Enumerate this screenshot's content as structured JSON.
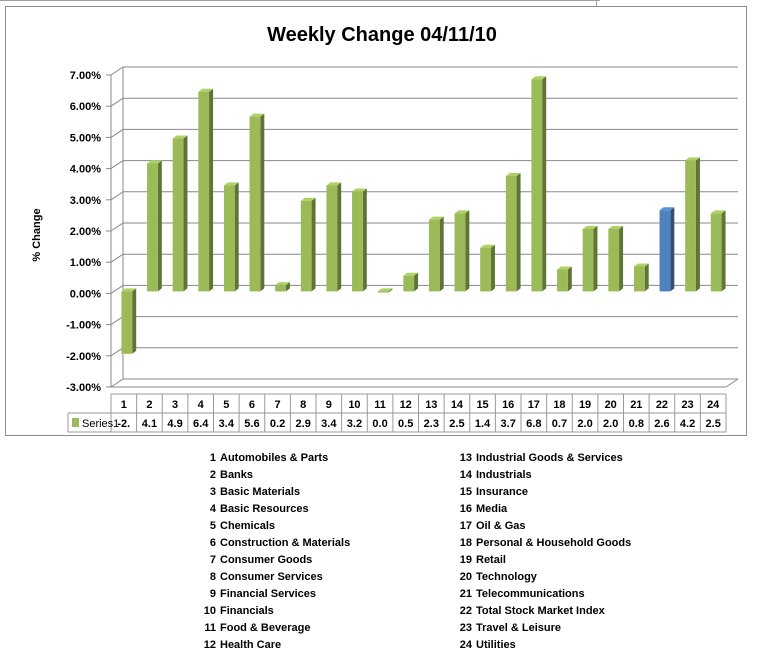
{
  "chart_data": {
    "type": "bar",
    "title": "Weekly Change 04/11/10",
    "ylabel": "% Change",
    "xlabel": "",
    "ylim": [
      -3,
      7
    ],
    "y_ticks": [
      "7.00%",
      "6.00%",
      "5.00%",
      "4.00%",
      "3.00%",
      "2.00%",
      "1.00%",
      "0.00%",
      "-1.00%",
      "-2.00%",
      "-3.00%"
    ],
    "grid": true,
    "categories": [
      "1",
      "2",
      "3",
      "4",
      "5",
      "6",
      "7",
      "8",
      "9",
      "10",
      "11",
      "12",
      "13",
      "14",
      "15",
      "16",
      "17",
      "18",
      "19",
      "20",
      "21",
      "22",
      "23",
      "24"
    ],
    "series": [
      {
        "name": "Series1",
        "values": [
          -2.0,
          4.1,
          4.9,
          6.4,
          3.4,
          5.6,
          0.2,
          2.9,
          3.4,
          3.2,
          0.0,
          0.5,
          2.3,
          2.5,
          1.4,
          3.7,
          6.8,
          0.7,
          2.0,
          2.0,
          0.8,
          2.6,
          4.2,
          2.5
        ],
        "table_labels": [
          "-2.",
          "4.1",
          "4.9",
          "6.4",
          "3.4",
          "5.6",
          "0.2",
          "2.9",
          "3.4",
          "3.2",
          "0.0",
          "0.5",
          "2.3",
          "2.5",
          "1.4",
          "3.7",
          "6.8",
          "0.7",
          "2.0",
          "2.0",
          "0.8",
          "2.6",
          "4.2",
          "2.5"
        ],
        "color": "#9bbb59",
        "highlight_index": 21,
        "highlight_color": "#4f81bd"
      }
    ],
    "legend_placement": "data-table-left"
  },
  "key_left": [
    {
      "num": "1",
      "label": "Automobiles & Parts"
    },
    {
      "num": "2",
      "label": "Banks"
    },
    {
      "num": "3",
      "label": "Basic Materials"
    },
    {
      "num": "4",
      "label": "Basic Resources"
    },
    {
      "num": "5",
      "label": "Chemicals"
    },
    {
      "num": "6",
      "label": "Construction & Materials"
    },
    {
      "num": "7",
      "label": "Consumer Goods"
    },
    {
      "num": "8",
      "label": "Consumer Services"
    },
    {
      "num": "9",
      "label": "Financial Services"
    },
    {
      "num": "10",
      "label": "Financials"
    },
    {
      "num": "11",
      "label": "Food & Beverage"
    },
    {
      "num": "12",
      "label": "Health Care"
    }
  ],
  "key_right": [
    {
      "num": "13",
      "label": "Industrial Goods & Services"
    },
    {
      "num": "14",
      "label": "Industrials"
    },
    {
      "num": "15",
      "label": "Insurance"
    },
    {
      "num": "16",
      "label": "Media"
    },
    {
      "num": "17",
      "label": "Oil & Gas"
    },
    {
      "num": "18",
      "label": "Personal & Household Goods"
    },
    {
      "num": "19",
      "label": "Retail"
    },
    {
      "num": "20",
      "label": "Technology"
    },
    {
      "num": "21",
      "label": "Telecommunications"
    },
    {
      "num": "22",
      "label": "Total Stock Market Index"
    },
    {
      "num": "23",
      "label": "Travel & Leisure"
    },
    {
      "num": "24",
      "label": "Utilities"
    }
  ]
}
